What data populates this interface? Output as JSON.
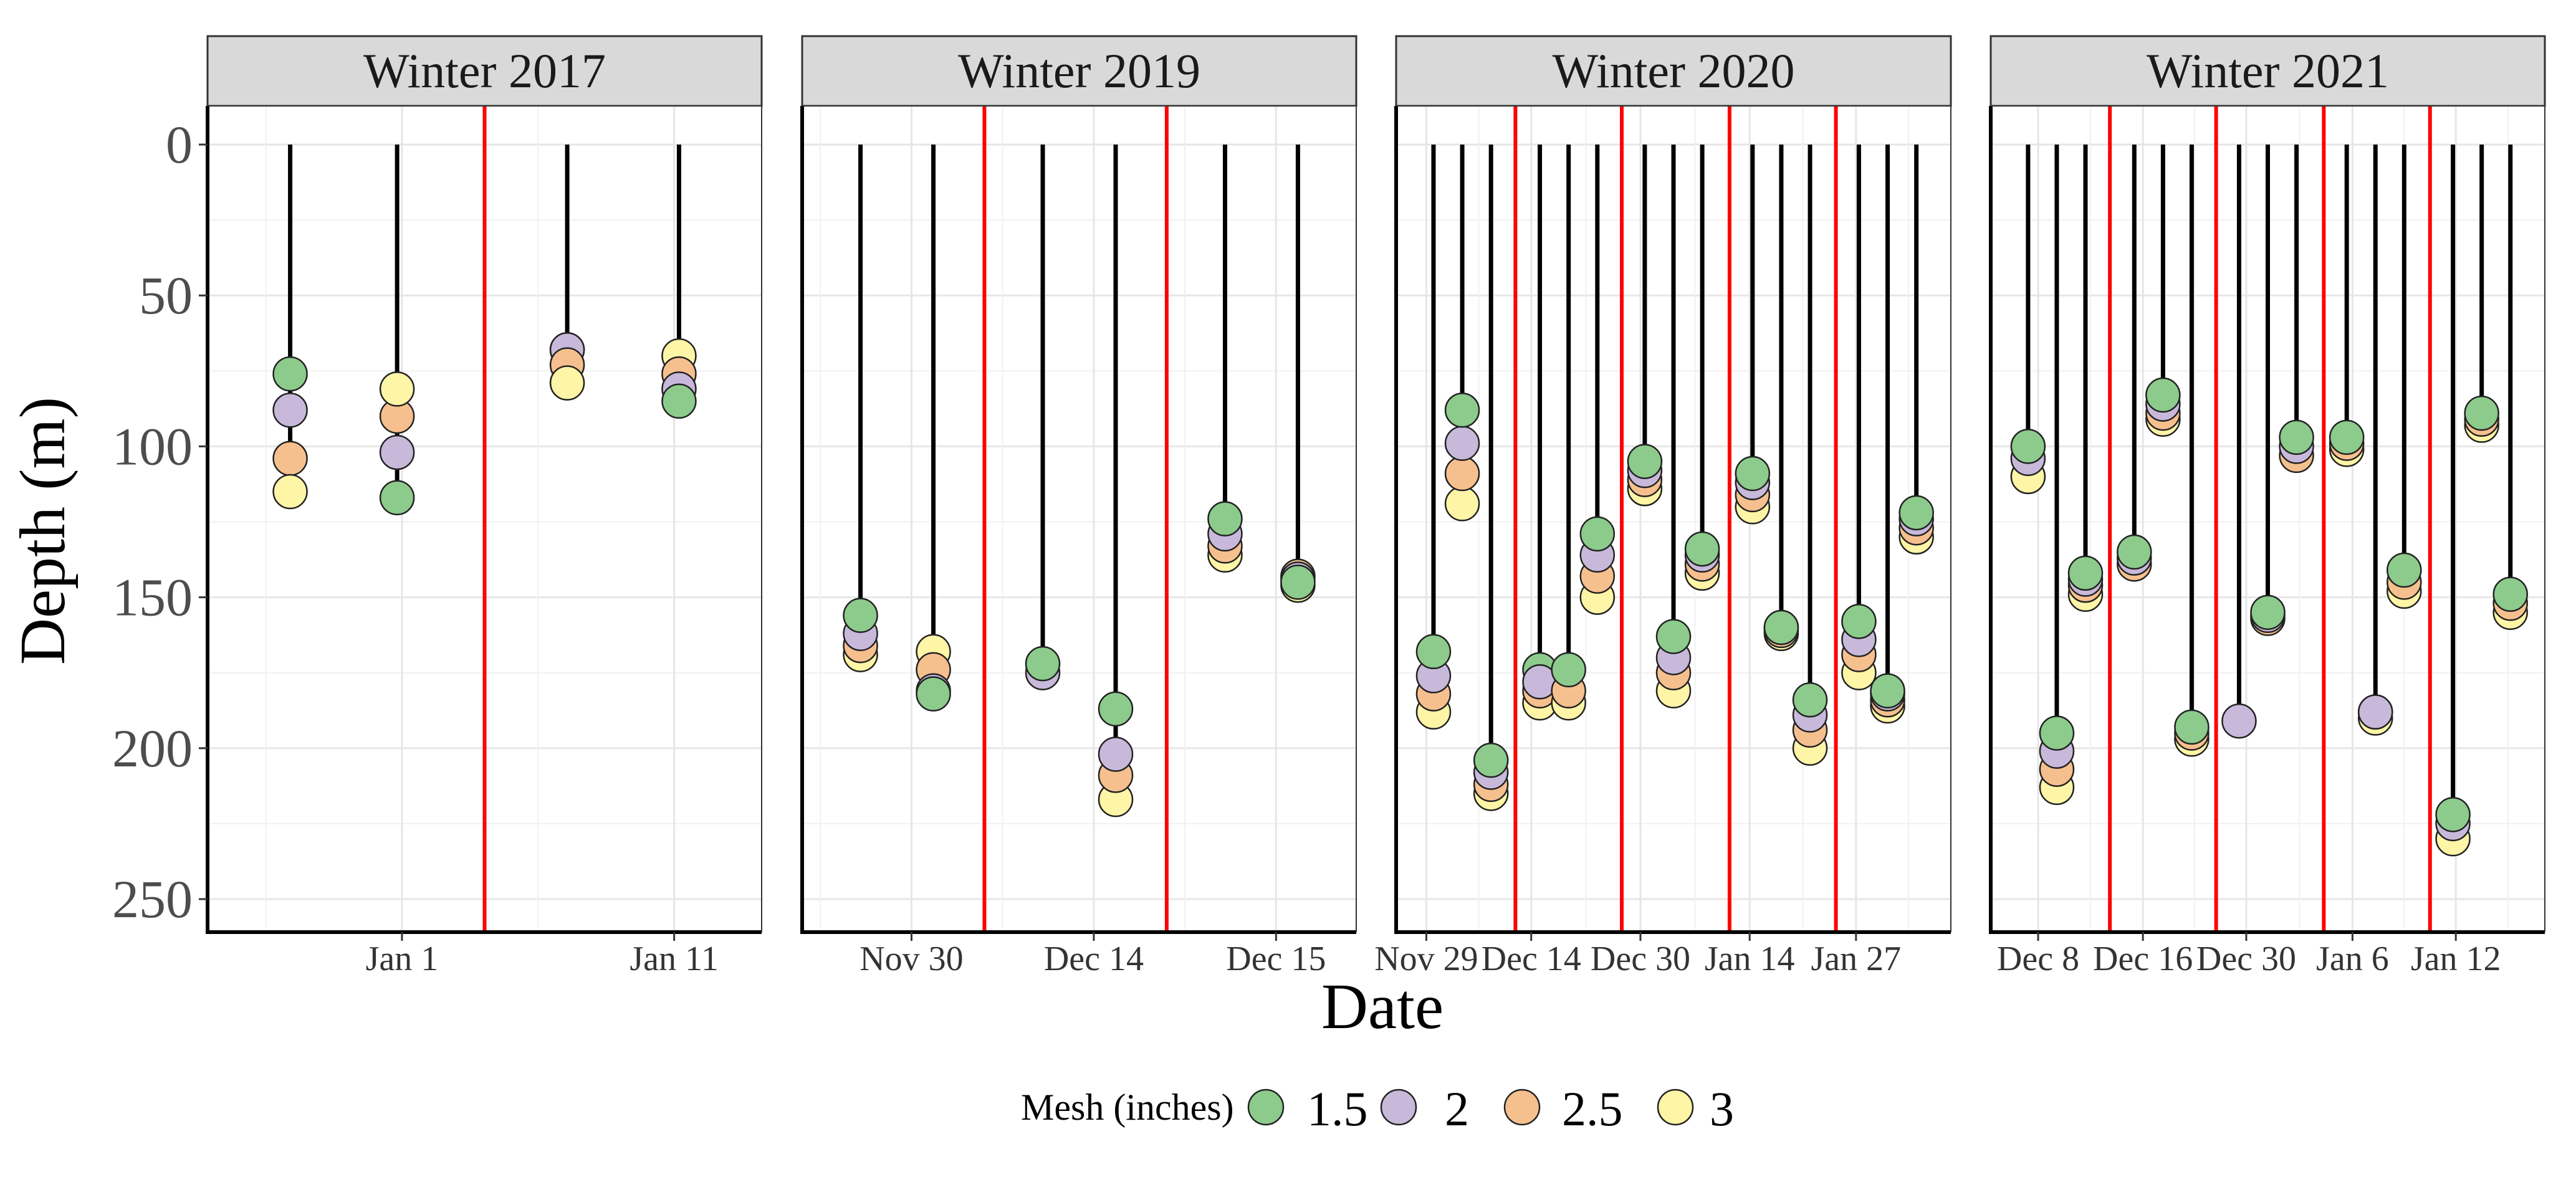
{
  "chart_data": {
    "type": "scatter",
    "xlabel": "Date",
    "ylabel": "Depth (m)",
    "ylim": [
      0,
      260
    ],
    "y_reversed": true,
    "yticks": [
      0,
      50,
      100,
      150,
      200,
      250
    ],
    "grid": true,
    "legend_position": "bottom",
    "legend": {
      "title": "Mesh (inches)",
      "entries": [
        {
          "label": "1.5",
          "color": "#8ccb8c"
        },
        {
          "label": "2",
          "color": "#c8b9db"
        },
        {
          "label": "2.5",
          "color": "#f6c08e"
        },
        {
          "label": "3",
          "color": "#fef5a6"
        }
      ]
    },
    "colors": {
      "separator": "#ff0000",
      "line": "#000000",
      "strip": "#d9d9d9"
    },
    "panels": [
      {
        "title": "Winter 2017",
        "xlim": [
          0.5,
          6.2
        ],
        "xticks": [
          {
            "x": 2.5,
            "label": "Jan 1"
          },
          {
            "x": 5.3,
            "label": "Jan 11"
          }
        ],
        "separators": [
          3.35
        ],
        "sets": [
          {
            "x": 1.35,
            "bottom": 115,
            "points": [
              {
                "mesh": "1.5",
                "y": 76
              },
              {
                "mesh": "2",
                "y": 88
              },
              {
                "mesh": "2.5",
                "y": 104
              },
              {
                "mesh": "3",
                "y": 115
              }
            ]
          },
          {
            "x": 2.45,
            "bottom": 117,
            "points": [
              {
                "mesh": "1.5",
                "y": 117
              },
              {
                "mesh": "2",
                "y": 102
              },
              {
                "mesh": "2.5",
                "y": 90
              },
              {
                "mesh": "3",
                "y": 81
              }
            ]
          },
          {
            "x": 4.2,
            "bottom": 79,
            "points": [
              {
                "mesh": "1.5",
                "y": 68
              },
              {
                "mesh": "2",
                "y": 68
              },
              {
                "mesh": "2.5",
                "y": 73
              },
              {
                "mesh": "3",
                "y": 79
              }
            ]
          },
          {
            "x": 5.35,
            "bottom": 84,
            "points": [
              {
                "mesh": "3",
                "y": 70
              },
              {
                "mesh": "2.5",
                "y": 76
              },
              {
                "mesh": "2",
                "y": 81
              },
              {
                "mesh": "1.5",
                "y": 85
              }
            ]
          }
        ]
      },
      {
        "title": "Winter 2019",
        "xlim": [
          0.5,
          8.1
        ],
        "xticks": [
          {
            "x": 2.0,
            "label": "Nov 30"
          },
          {
            "x": 4.5,
            "label": "Dec 14"
          },
          {
            "x": 7.0,
            "label": "Dec 15"
          }
        ],
        "separators": [
          3.0,
          5.5
        ],
        "sets": [
          {
            "x": 1.3,
            "bottom": 169,
            "points": [
              {
                "mesh": "3",
                "y": 169
              },
              {
                "mesh": "2.5",
                "y": 166
              },
              {
                "mesh": "2",
                "y": 162
              },
              {
                "mesh": "1.5",
                "y": 156
              }
            ]
          },
          {
            "x": 2.3,
            "bottom": 181,
            "points": [
              {
                "mesh": "3",
                "y": 168
              },
              {
                "mesh": "2.5",
                "y": 174
              },
              {
                "mesh": "2",
                "y": 181
              },
              {
                "mesh": "1.5",
                "y": 182
              }
            ]
          },
          {
            "x": 3.8,
            "bottom": 174,
            "points": [
              {
                "mesh": "2",
                "y": 175
              },
              {
                "mesh": "1.5",
                "y": 172
              }
            ]
          },
          {
            "x": 4.8,
            "bottom": 218,
            "points": [
              {
                "mesh": "3",
                "y": 217
              },
              {
                "mesh": "2.5",
                "y": 209
              },
              {
                "mesh": "2",
                "y": 202
              },
              {
                "mesh": "1.5",
                "y": 187
              }
            ]
          },
          {
            "x": 6.3,
            "bottom": 135,
            "points": [
              {
                "mesh": "3",
                "y": 136
              },
              {
                "mesh": "2.5",
                "y": 133
              },
              {
                "mesh": "2",
                "y": 129
              },
              {
                "mesh": "1.5",
                "y": 124
              }
            ]
          },
          {
            "x": 7.3,
            "bottom": 145,
            "points": [
              {
                "mesh": "3",
                "y": 146
              },
              {
                "mesh": "2.5",
                "y": 143
              },
              {
                "mesh": "2",
                "y": 144
              },
              {
                "mesh": "1.5",
                "y": 145
              }
            ]
          }
        ]
      },
      {
        "title": "Winter 2020",
        "xlim": [
          0.3,
          19.6
        ],
        "xticks": [
          {
            "x": 1.35,
            "label": "Nov 29"
          },
          {
            "x": 5.0,
            "label": "Dec 14"
          },
          {
            "x": 8.8,
            "label": "Dec 30"
          },
          {
            "x": 12.6,
            "label": "Jan 14"
          },
          {
            "x": 16.3,
            "label": "Jan 27"
          }
        ],
        "separators": [
          4.45,
          8.15,
          11.9,
          15.6
        ],
        "sets": [
          {
            "x": 1.6,
            "bottom": 186,
            "points": [
              {
                "mesh": "3",
                "y": 188
              },
              {
                "mesh": "2.5",
                "y": 182
              },
              {
                "mesh": "2",
                "y": 176
              },
              {
                "mesh": "1.5",
                "y": 168
              }
            ]
          },
          {
            "x": 2.6,
            "bottom": 118,
            "points": [
              {
                "mesh": "3",
                "y": 119
              },
              {
                "mesh": "2.5",
                "y": 109
              },
              {
                "mesh": "2",
                "y": 99
              },
              {
                "mesh": "1.5",
                "y": 88
              }
            ]
          },
          {
            "x": 3.6,
            "bottom": 213,
            "points": [
              {
                "mesh": "3",
                "y": 215
              },
              {
                "mesh": "2.5",
                "y": 212
              },
              {
                "mesh": "2",
                "y": 208
              },
              {
                "mesh": "1.5",
                "y": 204
              }
            ]
          },
          {
            "x": 5.3,
            "bottom": 183,
            "points": [
              {
                "mesh": "3",
                "y": 185
              },
              {
                "mesh": "2.5",
                "y": 181
              },
              {
                "mesh": "1.5",
                "y": 174
              },
              {
                "mesh": "2",
                "y": 178
              }
            ]
          },
          {
            "x": 6.3,
            "bottom": 184,
            "points": [
              {
                "mesh": "3",
                "y": 185
              },
              {
                "mesh": "2.5",
                "y": 181
              },
              {
                "mesh": "1.5",
                "y": 174
              }
            ]
          },
          {
            "x": 7.3,
            "bottom": 148,
            "points": [
              {
                "mesh": "3",
                "y": 150
              },
              {
                "mesh": "2.5",
                "y": 143
              },
              {
                "mesh": "2",
                "y": 136
              },
              {
                "mesh": "1.5",
                "y": 129
              }
            ]
          },
          {
            "x": 8.95,
            "bottom": 113,
            "points": [
              {
                "mesh": "3",
                "y": 114
              },
              {
                "mesh": "2.5",
                "y": 111
              },
              {
                "mesh": "2",
                "y": 108
              },
              {
                "mesh": "1.5",
                "y": 105
              }
            ]
          },
          {
            "x": 9.95,
            "bottom": 181,
            "points": [
              {
                "mesh": "3",
                "y": 181
              },
              {
                "mesh": "2.5",
                "y": 175
              },
              {
                "mesh": "2",
                "y": 170
              },
              {
                "mesh": "1.5",
                "y": 163
              }
            ]
          },
          {
            "x": 10.95,
            "bottom": 141,
            "points": [
              {
                "mesh": "3",
                "y": 142
              },
              {
                "mesh": "2.5",
                "y": 139
              },
              {
                "mesh": "2",
                "y": 136
              },
              {
                "mesh": "1.5",
                "y": 134
              }
            ]
          },
          {
            "x": 12.7,
            "bottom": 119,
            "points": [
              {
                "mesh": "3",
                "y": 120
              },
              {
                "mesh": "2.5",
                "y": 116
              },
              {
                "mesh": "2",
                "y": 112
              },
              {
                "mesh": "1.5",
                "y": 109
              }
            ]
          },
          {
            "x": 13.7,
            "bottom": 161,
            "points": [
              {
                "mesh": "3",
                "y": 162
              },
              {
                "mesh": "2.5",
                "y": 161
              },
              {
                "mesh": "2",
                "y": 160
              },
              {
                "mesh": "1.5",
                "y": 160
              }
            ]
          },
          {
            "x": 14.7,
            "bottom": 199,
            "points": [
              {
                "mesh": "3",
                "y": 200
              },
              {
                "mesh": "2.5",
                "y": 194
              },
              {
                "mesh": "2",
                "y": 189
              },
              {
                "mesh": "1.5",
                "y": 184
              }
            ]
          },
          {
            "x": 16.4,
            "bottom": 175,
            "points": [
              {
                "mesh": "3",
                "y": 175
              },
              {
                "mesh": "2.5",
                "y": 169
              },
              {
                "mesh": "2",
                "y": 164
              },
              {
                "mesh": "1.5",
                "y": 158
              }
            ]
          },
          {
            "x": 17.4,
            "bottom": 185,
            "points": [
              {
                "mesh": "3",
                "y": 186
              },
              {
                "mesh": "2.5",
                "y": 184
              },
              {
                "mesh": "2",
                "y": 182
              },
              {
                "mesh": "1.5",
                "y": 181
              }
            ]
          },
          {
            "x": 18.4,
            "bottom": 129,
            "points": [
              {
                "mesh": "3",
                "y": 130
              },
              {
                "mesh": "2.5",
                "y": 127
              },
              {
                "mesh": "2",
                "y": 124
              },
              {
                "mesh": "1.5",
                "y": 122
              }
            ]
          }
        ]
      },
      {
        "title": "Winter 2021",
        "xlim": [
          0.3,
          19.6
        ],
        "xticks": [
          {
            "x": 1.95,
            "label": "Dec 8"
          },
          {
            "x": 5.6,
            "label": "Dec 16"
          },
          {
            "x": 9.2,
            "label": "Dec 30"
          },
          {
            "x": 12.9,
            "label": "Jan 6"
          },
          {
            "x": 16.5,
            "label": "Jan 12"
          }
        ],
        "separators": [
          4.45,
          8.15,
          11.9,
          15.6
        ],
        "sets": [
          {
            "x": 1.6,
            "bottom": 108,
            "points": [
              {
                "mesh": "3",
                "y": 110
              },
              {
                "mesh": "2",
                "y": 104
              },
              {
                "mesh": "1.5",
                "y": 100
              }
            ]
          },
          {
            "x": 2.6,
            "bottom": 212,
            "points": [
              {
                "mesh": "3",
                "y": 213
              },
              {
                "mesh": "2.5",
                "y": 207
              },
              {
                "mesh": "2",
                "y": 201
              },
              {
                "mesh": "1.5",
                "y": 195
              }
            ]
          },
          {
            "x": 3.6,
            "bottom": 148,
            "points": [
              {
                "mesh": "3",
                "y": 149
              },
              {
                "mesh": "2.5",
                "y": 146
              },
              {
                "mesh": "2",
                "y": 144
              },
              {
                "mesh": "1.5",
                "y": 142
              }
            ]
          },
          {
            "x": 5.3,
            "bottom": 137,
            "points": [
              {
                "mesh": "2.5",
                "y": 139
              },
              {
                "mesh": "2",
                "y": 137
              },
              {
                "mesh": "1.5",
                "y": 135
              }
            ]
          },
          {
            "x": 6.3,
            "bottom": 90,
            "points": [
              {
                "mesh": "3",
                "y": 91
              },
              {
                "mesh": "2.5",
                "y": 89
              },
              {
                "mesh": "2",
                "y": 86
              },
              {
                "mesh": "1.5",
                "y": 83
              }
            ]
          },
          {
            "x": 7.3,
            "bottom": 195,
            "points": [
              {
                "mesh": "3",
                "y": 197
              },
              {
                "mesh": "2.5",
                "y": 195
              },
              {
                "mesh": "1.5",
                "y": 193
              }
            ]
          },
          {
            "x": 8.95,
            "bottom": 190,
            "points": [
              {
                "mesh": "2",
                "y": 191
              }
            ]
          },
          {
            "x": 9.95,
            "bottom": 155,
            "points": [
              {
                "mesh": "2.5",
                "y": 157
              },
              {
                "mesh": "2",
                "y": 156
              },
              {
                "mesh": "1.5",
                "y": 155
              }
            ]
          },
          {
            "x": 10.95,
            "bottom": 102,
            "points": [
              {
                "mesh": "2.5",
                "y": 103
              },
              {
                "mesh": "2",
                "y": 100
              },
              {
                "mesh": "1.5",
                "y": 97
              }
            ]
          },
          {
            "x": 12.7,
            "bottom": 100,
            "points": [
              {
                "mesh": "3",
                "y": 101
              },
              {
                "mesh": "2.5",
                "y": 99
              },
              {
                "mesh": "1.5",
                "y": 97
              }
            ]
          },
          {
            "x": 13.7,
            "bottom": 189,
            "points": [
              {
                "mesh": "3",
                "y": 190
              },
              {
                "mesh": "2.5",
                "y": 188
              },
              {
                "mesh": "2",
                "y": 188
              }
            ]
          },
          {
            "x": 14.7,
            "bottom": 146,
            "points": [
              {
                "mesh": "3",
                "y": 148
              },
              {
                "mesh": "2.5",
                "y": 145
              },
              {
                "mesh": "1.5",
                "y": 141
              }
            ]
          },
          {
            "x": 16.4,
            "bottom": 229,
            "points": [
              {
                "mesh": "3",
                "y": 230
              },
              {
                "mesh": "2",
                "y": 225
              },
              {
                "mesh": "1.5",
                "y": 222
              }
            ]
          },
          {
            "x": 17.4,
            "bottom": 92,
            "points": [
              {
                "mesh": "3",
                "y": 93
              },
              {
                "mesh": "2.5",
                "y": 91
              },
              {
                "mesh": "1.5",
                "y": 89
              }
            ]
          },
          {
            "x": 18.4,
            "bottom": 153,
            "points": [
              {
                "mesh": "3",
                "y": 155
              },
              {
                "mesh": "2.5",
                "y": 152
              },
              {
                "mesh": "1.5",
                "y": 149
              }
            ]
          }
        ]
      }
    ]
  }
}
